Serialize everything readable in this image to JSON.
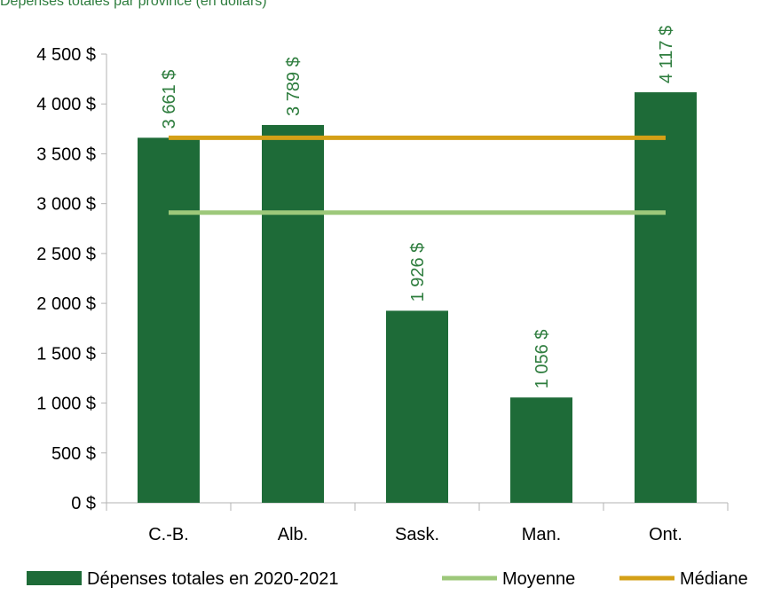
{
  "chart_data": {
    "type": "bar",
    "title": "Dépenses totales par province (en dollars)",
    "categories": [
      "C.-B.",
      "Alb.",
      "Sask.",
      "Man.",
      "Ont."
    ],
    "series": [
      {
        "name": "Dépenses totales en 2020-2021",
        "values": [
          3661,
          3789,
          1926,
          1056,
          4117
        ],
        "color": "#1e6b38"
      }
    ],
    "data_labels": [
      "3 661 $",
      "3 789 $",
      "1 926 $",
      "1 056 $",
      "4 117 $"
    ],
    "reference_lines": [
      {
        "name": "Moyenne",
        "value": 2910,
        "color": "#9dc87a"
      },
      {
        "name": "Médiane",
        "value": 3661,
        "color": "#d4a017"
      }
    ],
    "y_ticks": [
      0,
      500,
      1000,
      1500,
      2000,
      2500,
      3000,
      3500,
      4000,
      4500
    ],
    "y_tick_labels": [
      "0 $",
      "500 $",
      "1 000 $",
      "1 500 $",
      "2 000 $",
      "2 500 $",
      "3 000 $",
      "3 500 $",
      "4 000 $",
      "4 500 $"
    ],
    "ylim": [
      0,
      4500
    ],
    "grid": false,
    "legend_position": "bottom",
    "data_label_color": "#2e7d3e",
    "title_color": "#2e7d3e"
  }
}
